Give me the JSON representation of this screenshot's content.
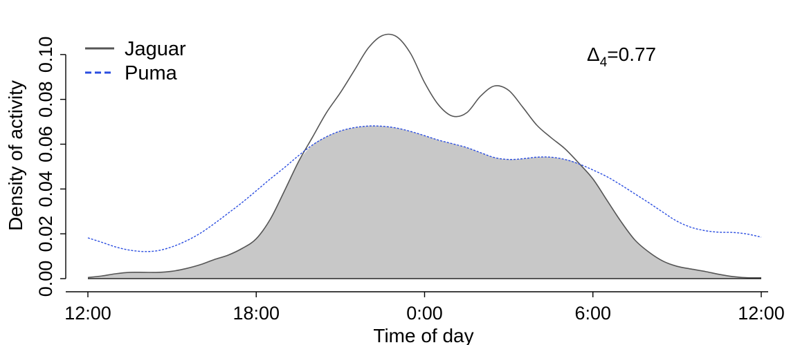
{
  "chart_data": {
    "type": "line",
    "xlabel": "Time of day",
    "ylabel": "Density of activity",
    "x_ticks": [
      {
        "value": 12,
        "label": "12:00"
      },
      {
        "value": 18,
        "label": "18:00"
      },
      {
        "value": 24,
        "label": "0:00"
      },
      {
        "value": 30,
        "label": "6:00"
      },
      {
        "value": 36,
        "label": "12:00"
      }
    ],
    "y_ticks": [
      {
        "value": 0.0,
        "label": "0.00"
      },
      {
        "value": 0.02,
        "label": "0.02"
      },
      {
        "value": 0.04,
        "label": "0.04"
      },
      {
        "value": 0.06,
        "label": "0.06"
      },
      {
        "value": 0.08,
        "label": "0.08"
      },
      {
        "value": 0.1,
        "label": "0.10"
      }
    ],
    "xlim": [
      12,
      36
    ],
    "ylim": [
      0,
      0.112
    ],
    "grid": false,
    "legend_position": "top-left",
    "annotation": {
      "delta": "Δ",
      "subscript": "4",
      "value": "=0.77"
    },
    "overlap_fill_color": "#c8c8c8",
    "series": [
      {
        "name": "Jaguar",
        "color": "#555555",
        "line_style": "solid",
        "x": [
          12,
          12.5,
          13,
          13.5,
          14,
          14.5,
          15,
          15.5,
          16,
          16.5,
          17,
          17.5,
          18,
          18.5,
          19,
          19.5,
          20,
          20.5,
          21,
          21.5,
          22,
          22.5,
          23,
          23.5,
          24,
          24.5,
          25,
          25.5,
          26,
          26.5,
          27,
          27.5,
          28,
          28.5,
          29,
          29.5,
          30,
          30.5,
          31,
          31.5,
          32,
          32.5,
          33,
          33.5,
          34,
          34.5,
          35,
          35.5,
          36
        ],
        "values": [
          0.0005,
          0.0012,
          0.0022,
          0.0028,
          0.0028,
          0.0028,
          0.0033,
          0.0045,
          0.0062,
          0.0085,
          0.0105,
          0.0135,
          0.0178,
          0.0265,
          0.039,
          0.052,
          0.063,
          0.074,
          0.083,
          0.093,
          0.103,
          0.1085,
          0.108,
          0.1005,
          0.0875,
          0.0775,
          0.0725,
          0.074,
          0.0815,
          0.086,
          0.084,
          0.0765,
          0.0685,
          0.063,
          0.058,
          0.0515,
          0.0445,
          0.035,
          0.0255,
          0.0172,
          0.0118,
          0.0078,
          0.0055,
          0.0043,
          0.0032,
          0.0019,
          0.0009,
          0.0004,
          0.0004
        ]
      },
      {
        "name": "Puma",
        "color": "#2a4de0",
        "line_style": "dashed",
        "x": [
          12,
          12.5,
          13,
          13.5,
          14,
          14.5,
          15,
          15.5,
          16,
          16.5,
          17,
          17.5,
          18,
          18.5,
          19,
          19.5,
          20,
          20.5,
          21,
          21.5,
          22,
          22.5,
          23,
          23.5,
          24,
          24.5,
          25,
          25.5,
          26,
          26.5,
          27,
          27.5,
          28,
          28.5,
          29,
          29.5,
          30,
          30.5,
          31,
          31.5,
          32,
          32.5,
          33,
          33.5,
          34,
          34.5,
          35,
          35.5,
          36
        ],
        "values": [
          0.0182,
          0.0162,
          0.0141,
          0.0127,
          0.0121,
          0.0125,
          0.0142,
          0.0168,
          0.0202,
          0.0245,
          0.0292,
          0.034,
          0.0392,
          0.0445,
          0.0495,
          0.0548,
          0.0596,
          0.0633,
          0.0659,
          0.0674,
          0.0681,
          0.068,
          0.0672,
          0.0657,
          0.0638,
          0.0618,
          0.0602,
          0.0585,
          0.0562,
          0.054,
          0.0532,
          0.0535,
          0.0542,
          0.0542,
          0.0532,
          0.0512,
          0.0485,
          0.0455,
          0.0418,
          0.0378,
          0.0338,
          0.0296,
          0.0256,
          0.0229,
          0.0214,
          0.0207,
          0.0206,
          0.0199,
          0.0185
        ]
      }
    ]
  }
}
